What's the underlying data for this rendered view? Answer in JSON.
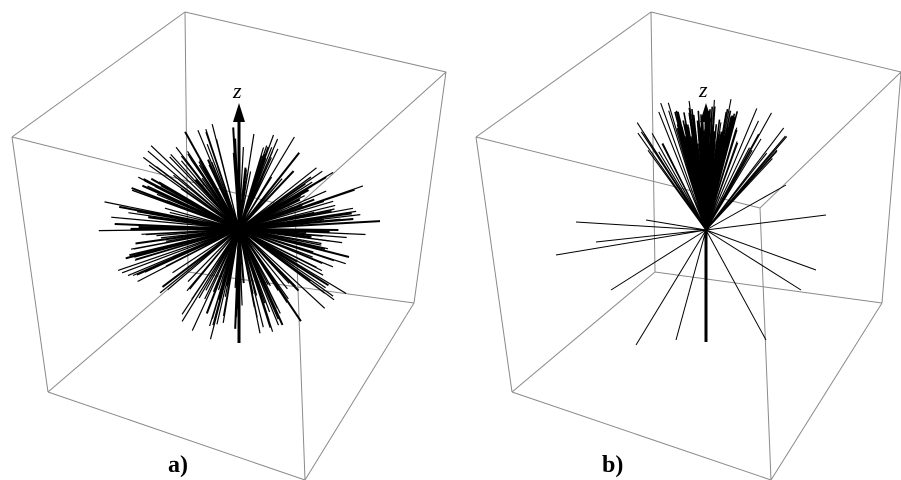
{
  "figure": {
    "panels": [
      {
        "id": "a",
        "label": "a)",
        "axis_label": "z",
        "description_kind": "isotropic"
      },
      {
        "id": "b",
        "label": "b)",
        "axis_label": "z",
        "description_kind": "forward-peaked"
      }
    ],
    "colors": {
      "rays": "#000000",
      "cube_edges": "#8a8a8a",
      "background": "#ffffff"
    }
  }
}
